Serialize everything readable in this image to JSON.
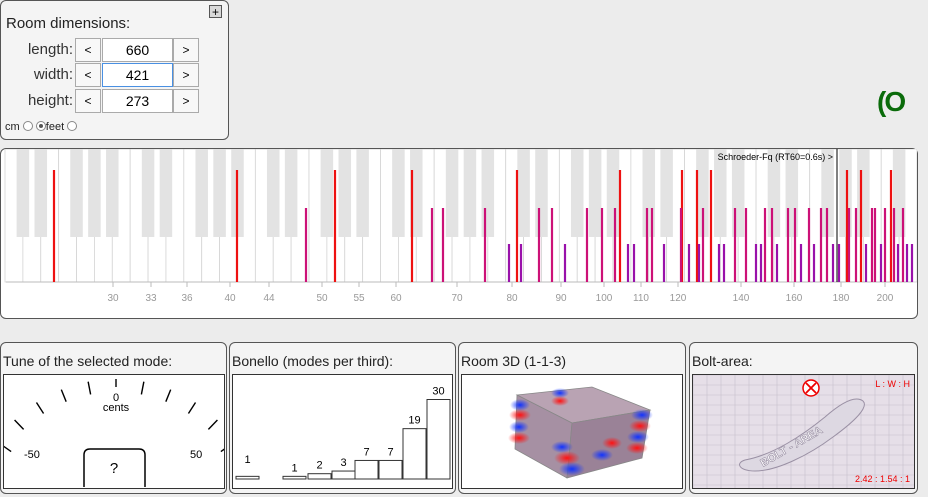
{
  "room": {
    "title": "Room dimensions:",
    "plus_label": "+",
    "length": {
      "label": "length:",
      "value": "660",
      "dec": "<",
      "inc": ">"
    },
    "width": {
      "label": "width:",
      "value": "421",
      "dec": "<",
      "inc": ">"
    },
    "height": {
      "label": "height:",
      "value": "273",
      "dec": "<",
      "inc": ">"
    },
    "units": [
      {
        "label": "cm",
        "selected": false
      },
      {
        "label": "feet",
        "selected": true
      }
    ]
  },
  "logo_text": "(O",
  "modes_chart": {
    "schroeder_label": "Schroeder-Fq (RT60=0.6s) >",
    "ticks": [
      "30",
      "33",
      "36",
      "40",
      "44",
      "50",
      "55",
      "60",
      "70",
      "80",
      "90",
      "100",
      "110",
      "120",
      "140",
      "160",
      "180",
      "200"
    ]
  },
  "tune": {
    "title": "Tune of the selected mode:",
    "zero": "0",
    "unit": "cents",
    "min": "-50",
    "max": "50",
    "value": "?"
  },
  "bonello": {
    "title": "Bonello (modes per third):",
    "labels": [
      "1",
      "1",
      "2",
      "3",
      "7",
      "7",
      "19",
      "30"
    ]
  },
  "room3d": {
    "title": "Room 3D (1-1-3)"
  },
  "bolt": {
    "title": "Bolt-area:",
    "axis_label": "L : W : H",
    "ratio": "2.42 : 1.54 : 1",
    "area_text": "BOLT - AREA"
  },
  "colors": {
    "axial": "#ee1111",
    "tangential": "#cc1177",
    "oblique": "#9911aa",
    "logo": "#0a6b0a"
  }
}
